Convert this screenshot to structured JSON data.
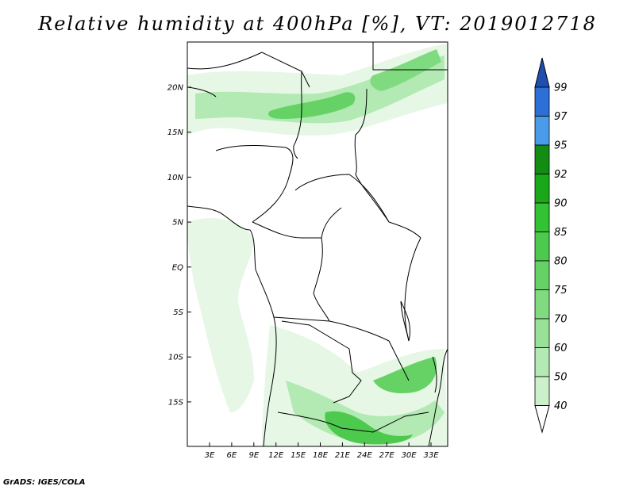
{
  "title": "Relative humidity at 400hPa [%], VT: 2019012718",
  "credit": "GrADS: IGES/COLA",
  "map": {
    "lon_range": [
      0,
      36
    ],
    "lat_range": [
      -20,
      25
    ],
    "lat_ticks": [
      "20N",
      "15N",
      "10N",
      "5N",
      "EQ",
      "5S",
      "10S",
      "15S"
    ],
    "lon_ticks": [
      "3E",
      "6E",
      "9E",
      "12E",
      "15E",
      "18E",
      "21E",
      "24E",
      "27E",
      "30E",
      "33E"
    ]
  },
  "colorbar": {
    "levels": [
      "99",
      "97",
      "95",
      "92",
      "90",
      "85",
      "80",
      "75",
      "70",
      "60",
      "50",
      "40"
    ],
    "colors": [
      "#ffffff",
      "#e6f7e6",
      "#ccf0cc",
      "#b3e9b3",
      "#99e199",
      "#80da80",
      "#66d266",
      "#4dca4d",
      "#33c233",
      "#1aa81a",
      "#128c12",
      "#4a9be8",
      "#2c6fd6",
      "#1e4fb0"
    ]
  },
  "colors": {
    "land_outline": "#000000",
    "humid_light": "#e6f7e6",
    "humid_mid": "#99e199",
    "humid_dark": "#33c233"
  }
}
